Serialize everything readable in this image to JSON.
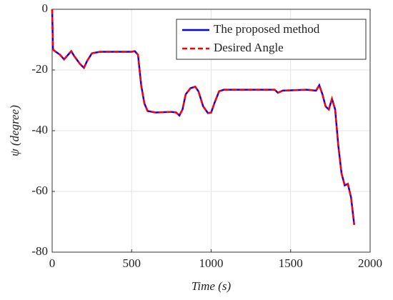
{
  "chart_data": {
    "type": "line",
    "xlabel": "Time (s)",
    "ylabel": "ψ (degree)",
    "x": [
      0,
      5,
      10,
      50,
      75,
      100,
      120,
      140,
      175,
      200,
      220,
      250,
      300,
      500,
      520,
      540,
      560,
      580,
      600,
      650,
      750,
      780,
      800,
      820,
      840,
      870,
      900,
      920,
      950,
      980,
      1000,
      1020,
      1050,
      1080,
      1200,
      1400,
      1420,
      1450,
      1600,
      1660,
      1680,
      1700,
      1720,
      1740,
      1760,
      1780,
      1800,
      1820,
      1840,
      1860,
      1880,
      1900
    ],
    "series": [
      {
        "name": "The proposed method",
        "color": "#0000ff",
        "dash": false,
        "values": [
          0,
          -13,
          -13.5,
          -15,
          -16.5,
          -15,
          -13.8,
          -15.5,
          -18,
          -19.3,
          -17,
          -14.5,
          -14,
          -14,
          -13.8,
          -15,
          -25,
          -31,
          -33.5,
          -34,
          -33.8,
          -34,
          -35,
          -33,
          -28,
          -26,
          -25.5,
          -27,
          -32,
          -34.2,
          -34,
          -31,
          -27,
          -26.5,
          -26.5,
          -26.5,
          -27.5,
          -26.8,
          -26.5,
          -26.8,
          -25,
          -28,
          -32,
          -33,
          -29.5,
          -33,
          -45,
          -54,
          -58,
          -57.5,
          -62,
          -71
        ]
      },
      {
        "name": "Desired Angle",
        "color": "#ff0000",
        "dash": true,
        "values": [
          0,
          -13,
          -13.5,
          -15,
          -16.5,
          -15,
          -13.8,
          -15.5,
          -18,
          -19.3,
          -17,
          -14.5,
          -14,
          -14,
          -13.8,
          -15,
          -25,
          -31,
          -33.5,
          -34,
          -33.8,
          -34,
          -35,
          -33,
          -28,
          -26,
          -25.5,
          -27,
          -32,
          -34.2,
          -34,
          -31,
          -27,
          -26.5,
          -26.5,
          -26.5,
          -27.5,
          -26.8,
          -26.5,
          -26.8,
          -25,
          -28,
          -32,
          -33,
          -29.5,
          -33,
          -45,
          -54,
          -58,
          -57.5,
          -62,
          -71
        ]
      }
    ],
    "xlim": [
      0,
      2000
    ],
    "xticks": [
      0,
      500,
      1000,
      1500,
      2000
    ],
    "ylim": [
      -80,
      0
    ],
    "yticks": [
      -80,
      -60,
      -40,
      -20,
      0
    ],
    "grid": true,
    "legend": "upper right"
  }
}
